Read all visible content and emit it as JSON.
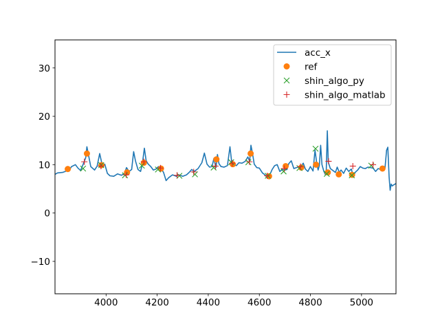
{
  "chart_data": {
    "type": "line",
    "title": "",
    "xlabel": "",
    "ylabel": "",
    "xlim": [
      3800,
      5135
    ],
    "ylim": [
      -16.7,
      35.8
    ],
    "xticks": [
      4000,
      4200,
      4400,
      4600,
      4800,
      5000
    ],
    "yticks": [
      -10,
      0,
      10,
      20,
      30
    ],
    "xtick_labels": [
      "4000",
      "4200",
      "4400",
      "4600",
      "4800",
      "5000"
    ],
    "ytick_labels": [
      "−10",
      "0",
      "10",
      "20",
      "30"
    ],
    "legend_position": "top-right",
    "colors": {
      "acc_x": "#1f77b4",
      "ref": "#ff7f0e",
      "shin_algo_py": "#2ca02c",
      "shin_algo_matlab": "#d62728"
    },
    "series": [
      {
        "name": "acc_x",
        "kind": "line",
        "color": "#1f77b4",
        "x": [
          3800,
          3810,
          3830,
          3845,
          3855,
          3865,
          3880,
          3890,
          3900,
          3912,
          3920,
          3925,
          3932,
          3940,
          3955,
          3965,
          3975,
          3985,
          3995,
          4005,
          4015,
          4030,
          4045,
          4060,
          4072,
          4080,
          4090,
          4100,
          4108,
          4115,
          4125,
          4135,
          4142,
          4150,
          4157,
          4165,
          4175,
          4185,
          4195,
          4205,
          4215,
          4225,
          4235,
          4245,
          4260,
          4275,
          4285,
          4300,
          4315,
          4325,
          4335,
          4345,
          4360,
          4375,
          4385,
          4395,
          4405,
          4415,
          4422,
          4430,
          4436,
          4442,
          4450,
          4462,
          4475,
          4485,
          4492,
          4500,
          4510,
          4520,
          4532,
          4545,
          4555,
          4562,
          4567,
          4573,
          4580,
          4590,
          4600,
          4612,
          4622,
          4630,
          4640,
          4650,
          4660,
          4670,
          4680,
          4690,
          4700,
          4708,
          4715,
          4725,
          4735,
          4745,
          4752,
          4758,
          4765,
          4772,
          4780,
          4790,
          4800,
          4810,
          4818,
          4825,
          4830,
          4835,
          4840,
          4845,
          4852,
          4858,
          4862,
          4866,
          4870,
          4878,
          4888,
          4898,
          4905,
          4913,
          4920,
          4930,
          4940,
          4950,
          4960,
          4968,
          4975,
          4985,
          4995,
          5005,
          5015,
          5025,
          5035,
          5045,
          5055,
          5065,
          5075,
          5085,
          5092,
          5098,
          5103,
          5108,
          5112,
          5116,
          5120,
          5125,
          5135
        ],
        "y": [
          8.0,
          8.3,
          8.4,
          8.7,
          8.8,
          9.6,
          10.0,
          9.3,
          8.8,
          10.3,
          11.4,
          13.7,
          11.8,
          9.6,
          8.9,
          9.7,
          12.3,
          9.9,
          10.1,
          8.2,
          7.7,
          7.6,
          8.1,
          7.8,
          8.2,
          9.4,
          8.6,
          9.0,
          12.7,
          10.8,
          9.0,
          8.6,
          10.2,
          13.4,
          10.8,
          10.1,
          9.6,
          8.9,
          9.1,
          9.6,
          9.2,
          8.4,
          6.7,
          7.3,
          7.9,
          7.6,
          7.9,
          7.6,
          7.9,
          8.4,
          9.0,
          8.6,
          9.2,
          10.4,
          12.4,
          10.1,
          9.5,
          9.6,
          11.3,
          9.4,
          12.1,
          10.2,
          9.6,
          9.5,
          9.8,
          13.7,
          10.4,
          10.0,
          9.8,
          10.4,
          10.3,
          10.7,
          11.6,
          10.7,
          14.0,
          12.4,
          10.1,
          9.4,
          9.3,
          8.3,
          7.9,
          7.3,
          7.8,
          9.0,
          9.8,
          10.0,
          8.6,
          9.0,
          8.9,
          9.0,
          10.2,
          10.8,
          9.2,
          9.4,
          9.5,
          9.4,
          9.8,
          10.3,
          9.1,
          8.6,
          9.6,
          8.7,
          13.0,
          10.2,
          8.9,
          9.8,
          14.0,
          10.0,
          8.7,
          8.0,
          9.0,
          17.0,
          10.5,
          9.2,
          8.8,
          8.4,
          9.5,
          8.4,
          8.9,
          8.2,
          9.3,
          8.6,
          9.1,
          7.6,
          8.4,
          8.9,
          9.6,
          9.3,
          9.2,
          9.5,
          9.4,
          9.3,
          8.6,
          9.2,
          9.0,
          8.8,
          9.3,
          13.0,
          13.6,
          7.4,
          4.7,
          6.0,
          5.6,
          5.8,
          6.1
        ]
      },
      {
        "name": "ref",
        "kind": "marker",
        "marker": "circle",
        "color": "#ff7f0e",
        "x": [
          3850,
          3925,
          3982,
          4082,
          4148,
          4215,
          4432,
          4496,
          4566,
          4638,
          4703,
          4764,
          4822,
          4868,
          4911,
          4963,
          5082
        ],
        "y": [
          9.1,
          12.3,
          9.9,
          8.4,
          10.4,
          9.2,
          11.1,
          10.1,
          12.3,
          7.6,
          9.7,
          9.4,
          10.0,
          8.4,
          8.0,
          7.9,
          9.2
        ]
      },
      {
        "name": "shin_algo_py",
        "kind": "marker",
        "marker": "x",
        "color": "#2ca02c",
        "x": [
          3910,
          3981,
          4074,
          4140,
          4203,
          4287,
          4348,
          4421,
          4490,
          4557,
          4633,
          4695,
          4757,
          4820,
          4864,
          4962,
          5038
        ],
        "y": [
          9.2,
          9.9,
          7.8,
          9.8,
          9.0,
          7.7,
          8.0,
          9.4,
          10.5,
          10.5,
          7.7,
          8.6,
          9.3,
          13.3,
          8.1,
          7.8,
          9.8
        ]
      },
      {
        "name": "shin_algo_matlab",
        "kind": "marker",
        "marker": "plus",
        "color": "#d62728",
        "x": [
          3915,
          3980,
          4079,
          4148,
          4213,
          4278,
          4343,
          4428,
          4494,
          4561,
          4631,
          4698,
          4761,
          4871,
          4966,
          5045
        ],
        "y": [
          10.6,
          9.7,
          7.9,
          10.6,
          9.3,
          7.8,
          8.5,
          9.7,
          10.3,
          10.6,
          7.7,
          9.2,
          9.6,
          10.7,
          9.7,
          10.0
        ]
      }
    ]
  }
}
